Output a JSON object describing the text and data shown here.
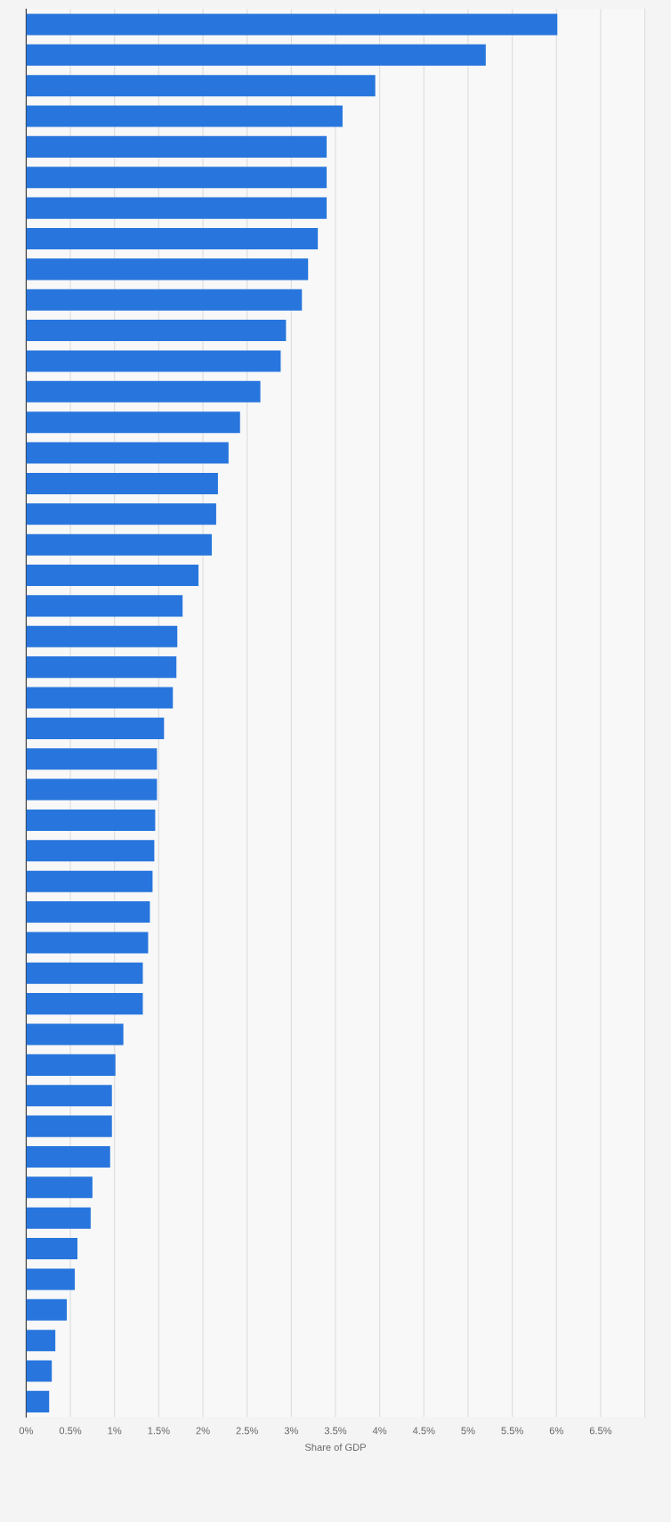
{
  "chart_data": {
    "type": "bar",
    "orientation": "horizontal",
    "xlabel": "Share of GDP",
    "categories": [
      null,
      null,
      null,
      null,
      null,
      null,
      null,
      null,
      null,
      null,
      null,
      null,
      null,
      null,
      null,
      null,
      null,
      null,
      null,
      null,
      null,
      null,
      null,
      null,
      null,
      null,
      null,
      null,
      null,
      null,
      null,
      null,
      null,
      null,
      null,
      null,
      null,
      null,
      null,
      null,
      null,
      null,
      null,
      null,
      null,
      null
    ],
    "values": [
      6.01,
      5.2,
      3.95,
      3.58,
      3.4,
      3.4,
      3.4,
      3.3,
      3.19,
      3.12,
      2.94,
      2.88,
      2.65,
      2.42,
      2.29,
      2.17,
      2.15,
      2.1,
      1.95,
      1.77,
      1.71,
      1.7,
      1.66,
      1.56,
      1.48,
      1.48,
      1.46,
      1.45,
      1.43,
      1.4,
      1.38,
      1.32,
      1.32,
      1.1,
      1.01,
      0.97,
      0.97,
      0.95,
      0.75,
      0.73,
      0.58,
      0.55,
      0.46,
      0.33,
      0.29,
      0.26
    ],
    "color": "#2876dd",
    "xlim": [
      0,
      7
    ],
    "xticks": [
      {
        "value": 0,
        "label": "0%"
      },
      {
        "value": 0.5,
        "label": "0.5%"
      },
      {
        "value": 1,
        "label": "1%"
      },
      {
        "value": 1.5,
        "label": "1.5%"
      },
      {
        "value": 2,
        "label": "2%"
      },
      {
        "value": 2.5,
        "label": "2.5%"
      },
      {
        "value": 3,
        "label": "3%"
      },
      {
        "value": 3.5,
        "label": "3.5%"
      },
      {
        "value": 4,
        "label": "4%"
      },
      {
        "value": 4.5,
        "label": "4.5%"
      },
      {
        "value": 5,
        "label": "5%"
      },
      {
        "value": 5.5,
        "label": "5.5%"
      },
      {
        "value": 6,
        "label": "6%"
      },
      {
        "value": 6.5,
        "label": "6.5%"
      }
    ],
    "grid": "x",
    "tick_labels": "x"
  }
}
